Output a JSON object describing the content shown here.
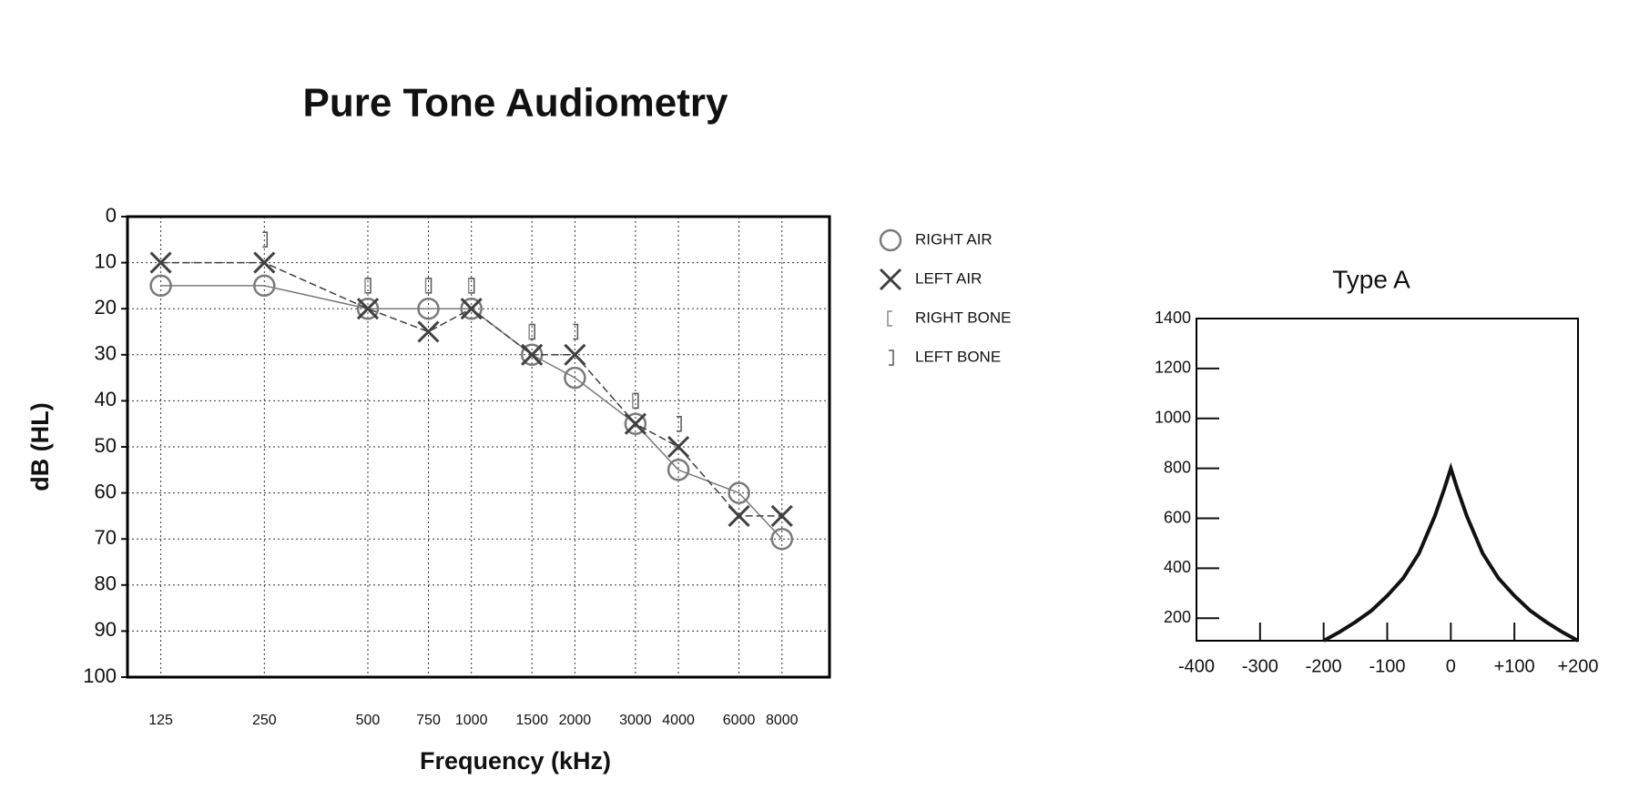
{
  "chart_data": [
    {
      "type": "line",
      "title": "Pure Tone Audiometry",
      "xlabel": "Frequency (kHz)",
      "ylabel": "dB (HL)",
      "x": [
        125,
        250,
        500,
        750,
        1000,
        1500,
        2000,
        3000,
        4000,
        6000,
        8000
      ],
      "xscale": "log",
      "xlim": [
        100,
        11000
      ],
      "xticks": [
        125,
        250,
        500,
        750,
        1000,
        1500,
        2000,
        3000,
        4000,
        6000,
        8000
      ],
      "ylim": [
        0,
        100
      ],
      "yinvert": true,
      "yticks": [
        0,
        10,
        20,
        30,
        40,
        50,
        60,
        70,
        80,
        90,
        100
      ],
      "grid": true,
      "legend": "right",
      "series": [
        {
          "name": "RIGHT AIR",
          "color": "#7a7a7a",
          "marker": "circle",
          "line": "solid",
          "values": [
            15,
            15,
            20,
            20,
            20,
            30,
            35,
            45,
            55,
            60,
            70
          ]
        },
        {
          "name": "LEFT AIR",
          "color": "#404040",
          "marker": "x",
          "line": "dashed",
          "values": [
            10,
            10,
            20,
            25,
            20,
            30,
            30,
            45,
            50,
            65,
            65
          ]
        },
        {
          "name": "RIGHT BONE",
          "color": "#8a8a8a",
          "marker": "bracket-left",
          "values": [
            null,
            null,
            15,
            15,
            15,
            25,
            null,
            40,
            null,
            null,
            null
          ]
        },
        {
          "name": "LEFT BONE",
          "color": "#555555",
          "marker": "bracket-right",
          "values": [
            null,
            5,
            15,
            15,
            15,
            25,
            25,
            40,
            45,
            null,
            null
          ]
        }
      ]
    },
    {
      "type": "line",
      "title": "Type A",
      "x": [
        -200,
        -175,
        -150,
        -125,
        -100,
        -75,
        -50,
        -25,
        -10,
        0,
        10,
        25,
        50,
        75,
        100,
        125,
        150,
        175,
        200
      ],
      "xlim": [
        -400,
        200
      ],
      "xticks": [
        -400,
        -300,
        -200,
        -100,
        0,
        {
          "value": 100,
          "label": "+100"
        },
        {
          "value": 200,
          "label": "+200"
        }
      ],
      "ylim": [
        110,
        1400
      ],
      "yticks": [
        200,
        400,
        600,
        800,
        1000,
        1200,
        1400
      ],
      "grid": false,
      "series": [
        {
          "color": "#111111",
          "values": [
            110,
            145,
            185,
            230,
            290,
            360,
            460,
            610,
            720,
            800,
            720,
            610,
            460,
            360,
            290,
            230,
            185,
            145,
            110
          ]
        }
      ]
    }
  ]
}
